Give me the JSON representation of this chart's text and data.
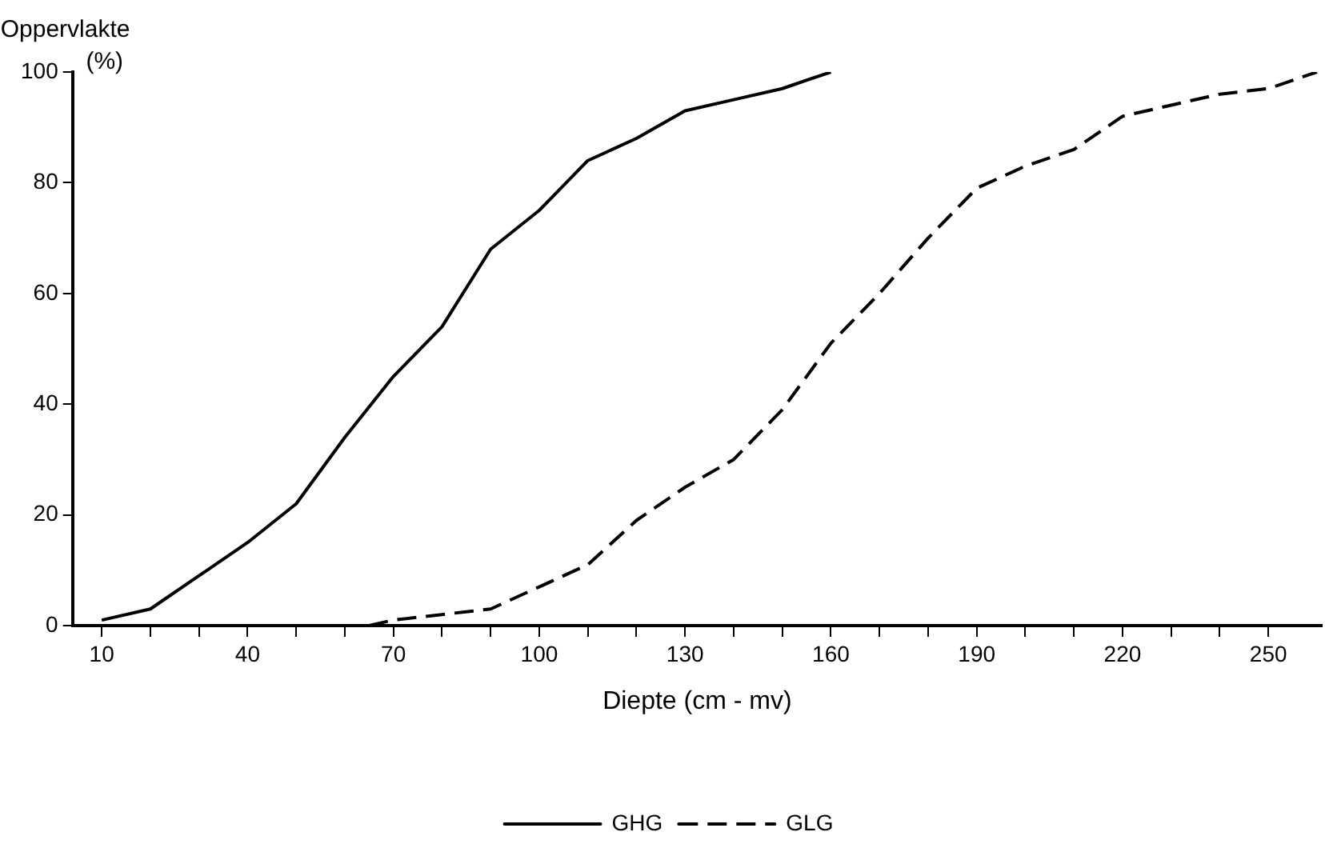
{
  "chart_data": {
    "type": "line",
    "xlabel": "Diepte (cm - mv)",
    "ylabel": "Oppervlakte\n(%)",
    "xlim": [
      4,
      261
    ],
    "ylim": [
      0,
      100
    ],
    "xticks": [
      10,
      {
        "value": 20,
        "label": null
      },
      {
        "value": 30,
        "label": null
      },
      40,
      {
        "value": 50,
        "label": null
      },
      {
        "value": 60,
        "label": null
      },
      70,
      {
        "value": 80,
        "label": null
      },
      {
        "value": 90,
        "label": null
      },
      100,
      {
        "value": 110,
        "label": null
      },
      {
        "value": 120,
        "label": null
      },
      130,
      {
        "value": 140,
        "label": null
      },
      {
        "value": 150,
        "label": null
      },
      160,
      {
        "value": 170,
        "label": null
      },
      {
        "value": 180,
        "label": null
      },
      190,
      {
        "value": 200,
        "label": null
      },
      {
        "value": 210,
        "label": null
      },
      220,
      {
        "value": 230,
        "label": null
      },
      {
        "value": 240,
        "label": null
      },
      250
    ],
    "yticks": [
      0,
      20,
      40,
      60,
      80,
      100
    ],
    "grid": false,
    "legend": "bottom",
    "marker": "none",
    "series": [
      {
        "name": "GHG",
        "color": "#000000",
        "line_style": "solid",
        "x": [
          10,
          20,
          30,
          40,
          50,
          60,
          70,
          80,
          90,
          100,
          110,
          120,
          130,
          140,
          150,
          160
        ],
        "values": [
          1,
          3,
          9,
          15,
          22,
          34,
          45,
          54,
          68,
          75,
          84,
          88,
          93,
          95,
          97,
          100
        ]
      },
      {
        "name": "GLG",
        "color": "#000000",
        "line_style": "dashed",
        "x": [
          65,
          70,
          80,
          90,
          100,
          110,
          120,
          130,
          140,
          150,
          160,
          170,
          180,
          190,
          200,
          210,
          220,
          230,
          240,
          250,
          260
        ],
        "values": [
          0,
          1,
          2,
          3,
          7,
          11,
          19,
          25,
          30,
          39,
          51,
          60,
          70,
          79,
          83,
          86,
          92,
          94,
          96,
          97,
          100
        ]
      }
    ]
  }
}
